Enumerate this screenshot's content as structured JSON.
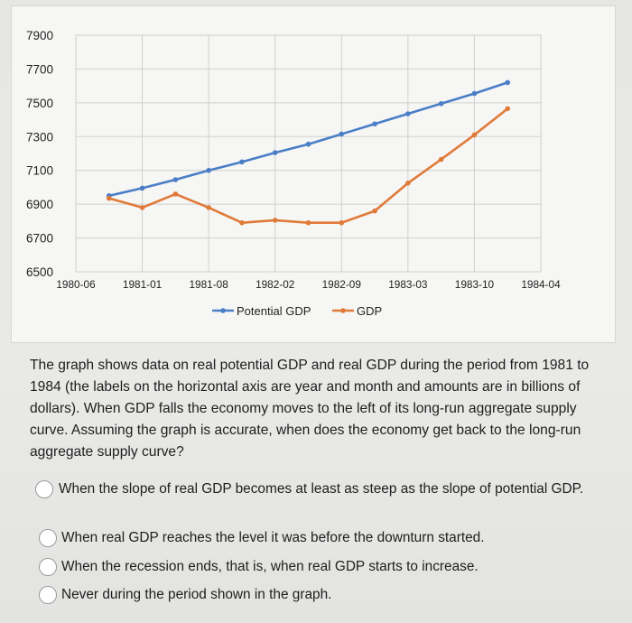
{
  "chart_data": {
    "type": "line",
    "title": "",
    "xlabel": "",
    "ylabel": "",
    "x_tick_labels": [
      "1980-06",
      "1981-01",
      "1981-08",
      "1982-02",
      "1982-09",
      "1983-03",
      "1983-10",
      "1984-04"
    ],
    "y_tick_labels": [
      "7900",
      "7700",
      "7500",
      "7300",
      "7100",
      "6900",
      "6700",
      "6500"
    ],
    "ylim": [
      6500,
      7900
    ],
    "x_index_range": [
      0,
      14
    ],
    "grid": true,
    "legend_position": "bottom",
    "series": [
      {
        "name": "Potential GDP",
        "color": "#4a7ec7",
        "x_index": [
          1,
          2,
          3,
          4,
          5,
          6,
          7,
          8,
          9,
          10,
          11,
          12,
          13
        ],
        "values": [
          6950,
          6995,
          7045,
          7100,
          7150,
          7205,
          7255,
          7315,
          7375,
          7435,
          7495,
          7555,
          7620
        ]
      },
      {
        "name": "GDP",
        "color": "#e07a39",
        "x_index": [
          1,
          2,
          3,
          4,
          5,
          6,
          7,
          8,
          9,
          10,
          11,
          12,
          13
        ],
        "values": [
          6935,
          6880,
          6960,
          6880,
          6790,
          6805,
          6790,
          6790,
          6860,
          7025,
          7165,
          7310,
          7465
        ]
      }
    ]
  },
  "question": {
    "text": "The graph shows data on real potential GDP and real GDP during the period from 1981 to 1984 (the labels on the horizontal axis are year and month and amounts are in billions of dollars). When GDP falls the economy moves to the left of its long-run aggregate supply curve. Assuming the graph is accurate, when does the economy get back to the long-run aggregate supply curve?"
  },
  "options": [
    {
      "label": "When the slope of real GDP becomes at least as steep as the slope of potential GDP."
    },
    {
      "label": "When real GDP reaches the level it was before the downturn started."
    },
    {
      "label": "When the recession ends, that is, when real GDP starts to increase."
    },
    {
      "label": "Never during the period shown in the graph."
    }
  ]
}
